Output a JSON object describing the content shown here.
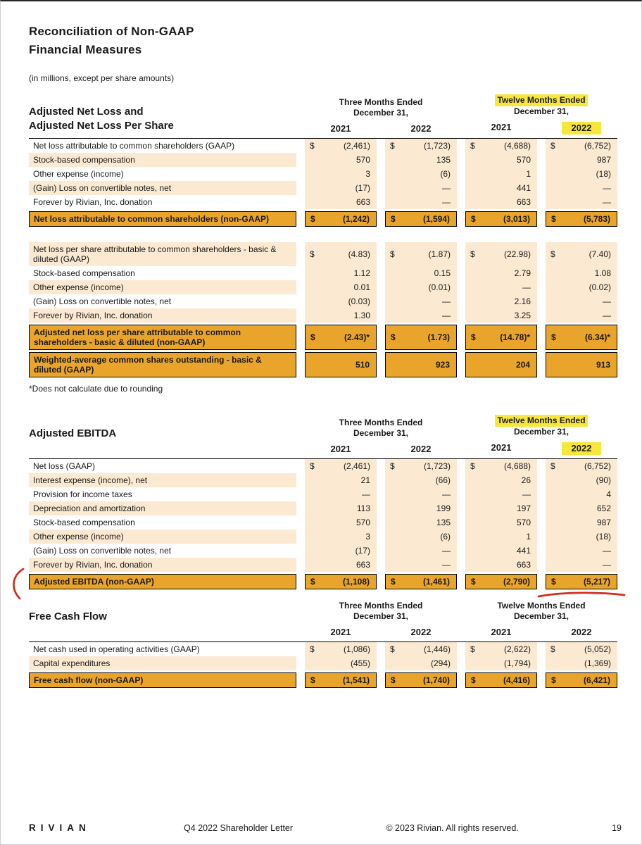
{
  "page": {
    "title_line1": "Reconciliation of Non-GAAP",
    "title_line2": "Financial Measures",
    "subtitle": "(in millions, except per share amounts)",
    "rounding_footnote": "*Does not calculate due to rounding"
  },
  "footer": {
    "logo_text": "RIVIAN",
    "center_text": "Q4 2022 Shareholder Letter",
    "copyright_text": "© 2023 Rivian. All rights reserved.",
    "page_number": "19"
  },
  "colors": {
    "amber": "#E9A42C",
    "row_tint": "#FBE9D2",
    "highlight_yellow": "#F7E73C",
    "annotation_red": "#D42B1E"
  },
  "tables": [
    {
      "id": "net-loss",
      "title_lines": [
        "Adjusted Net Loss and",
        "Adjusted Net Loss Per Share"
      ],
      "col_groups": [
        {
          "line1": "Three Months Ended",
          "line2": "December 31,",
          "line1_highlight": false,
          "years": [
            {
              "label": "2021",
              "highlight": false
            },
            {
              "label": "2022",
              "highlight": false
            }
          ]
        },
        {
          "line1": "Twelve Months Ended",
          "line2": "December 31,",
          "line1_highlight": true,
          "years": [
            {
              "label": "2021",
              "highlight": false
            },
            {
              "label": "2022",
              "highlight": true
            }
          ]
        }
      ],
      "rows": [
        {
          "type": "data",
          "tint": false,
          "dollar": true,
          "label": "Net loss attributable to common shareholders (GAAP)",
          "values": [
            "(2,461)",
            "(1,723)",
            "(4,688)",
            "(6,752)"
          ]
        },
        {
          "type": "data",
          "tint": true,
          "dollar": false,
          "label": "Stock-based compensation",
          "values": [
            "570",
            "135",
            "570",
            "987"
          ]
        },
        {
          "type": "data",
          "tint": false,
          "dollar": false,
          "label": "Other expense (income)",
          "values": [
            "3",
            "(6)",
            "1",
            "(18)"
          ]
        },
        {
          "type": "data",
          "tint": true,
          "dollar": false,
          "label": "(Gain) Loss on convertible notes, net",
          "values": [
            "(17)",
            "—",
            "441",
            "—"
          ]
        },
        {
          "type": "data",
          "tint": false,
          "dollar": false,
          "label": "Forever by Rivian, Inc. donation",
          "values": [
            "663",
            "—",
            "663",
            "—"
          ]
        },
        {
          "type": "total",
          "dollar": true,
          "label": "Net loss attributable to common shareholders (non-GAAP)",
          "values": [
            "(1,242)",
            "(1,594)",
            "(3,013)",
            "(5,783)"
          ]
        },
        {
          "type": "spacer"
        },
        {
          "type": "data",
          "tint": true,
          "dollar": true,
          "label": "Net loss per share attributable to common shareholders - basic & diluted (GAAP)",
          "values": [
            "(4.83)",
            "(1.87)",
            "(22.98)",
            "(7.40)"
          ]
        },
        {
          "type": "data",
          "tint": false,
          "dollar": false,
          "label": "Stock-based compensation",
          "values": [
            "1.12",
            "0.15",
            "2.79",
            "1.08"
          ]
        },
        {
          "type": "data",
          "tint": true,
          "dollar": false,
          "label": "Other expense (income)",
          "values": [
            "0.01",
            "(0.01)",
            "—",
            "(0.02)"
          ]
        },
        {
          "type": "data",
          "tint": false,
          "dollar": false,
          "label": "(Gain) Loss on convertible notes, net",
          "values": [
            "(0.03)",
            "—",
            "2.16",
            "—"
          ]
        },
        {
          "type": "data",
          "tint": true,
          "dollar": false,
          "label": "Forever by Rivian, Inc. donation",
          "values": [
            "1.30",
            "—",
            "3.25",
            "—"
          ]
        },
        {
          "type": "total",
          "dollar": true,
          "label": "Adjusted net loss per share attributable to common shareholders - basic & diluted (non-GAAP)",
          "values": [
            "(2.43)*",
            "(1.73)",
            "(14.78)*",
            "(6.34)*"
          ]
        },
        {
          "type": "total",
          "dollar": false,
          "label": "Weighted-average common shares outstanding - basic & diluted (GAAP)",
          "values": [
            "510",
            "923",
            "204",
            "913"
          ]
        }
      ]
    },
    {
      "id": "ebitda",
      "title_lines": [
        "Adjusted EBITDA"
      ],
      "col_groups": [
        {
          "line1": "Three Months Ended",
          "line2": "December 31,",
          "line1_highlight": false,
          "years": [
            {
              "label": "2021",
              "highlight": false
            },
            {
              "label": "2022",
              "highlight": false
            }
          ]
        },
        {
          "line1": "Twelve Months Ended",
          "line2": "December 31,",
          "line1_highlight": true,
          "years": [
            {
              "label": "2021",
              "highlight": false
            },
            {
              "label": "2022",
              "highlight": true
            }
          ]
        }
      ],
      "rows": [
        {
          "type": "data",
          "tint": false,
          "dollar": true,
          "label": "Net loss (GAAP)",
          "values": [
            "(2,461)",
            "(1,723)",
            "(4,688)",
            "(6,752)"
          ]
        },
        {
          "type": "data",
          "tint": true,
          "dollar": false,
          "label": "Interest expense (income), net",
          "values": [
            "21",
            "(66)",
            "26",
            "(90)"
          ]
        },
        {
          "type": "data",
          "tint": false,
          "dollar": false,
          "label": "Provision for income taxes",
          "values": [
            "—",
            "—",
            "—",
            "4"
          ]
        },
        {
          "type": "data",
          "tint": true,
          "dollar": false,
          "label": "Depreciation and amortization",
          "values": [
            "113",
            "199",
            "197",
            "652"
          ]
        },
        {
          "type": "data",
          "tint": false,
          "dollar": false,
          "label": "Stock-based compensation",
          "values": [
            "570",
            "135",
            "570",
            "987"
          ]
        },
        {
          "type": "data",
          "tint": true,
          "dollar": false,
          "label": "Other expense (income)",
          "values": [
            "3",
            "(6)",
            "1",
            "(18)"
          ]
        },
        {
          "type": "data",
          "tint": false,
          "dollar": false,
          "label": "(Gain) Loss on convertible notes, net",
          "values": [
            "(17)",
            "—",
            "441",
            "—"
          ]
        },
        {
          "type": "data",
          "tint": true,
          "dollar": false,
          "label": "Forever by Rivian, Inc. donation",
          "values": [
            "663",
            "—",
            "663",
            "—"
          ]
        },
        {
          "type": "total",
          "dollar": true,
          "annotate": true,
          "label": "Adjusted EBITDA (non-GAAP)",
          "values": [
            "(1,108)",
            "(1,461)",
            "(2,790)",
            "(5,217)"
          ]
        }
      ]
    },
    {
      "id": "fcf",
      "title_lines": [
        "Free Cash Flow"
      ],
      "col_groups": [
        {
          "line1": "Three Months Ended",
          "line2": "December 31,",
          "line1_highlight": false,
          "years": [
            {
              "label": "2021",
              "highlight": false
            },
            {
              "label": "2022",
              "highlight": false
            }
          ]
        },
        {
          "line1": "Twelve Months Ended",
          "line2": "December 31,",
          "line1_highlight": false,
          "years": [
            {
              "label": "2021",
              "highlight": false
            },
            {
              "label": "2022",
              "highlight": false
            }
          ]
        }
      ],
      "rows": [
        {
          "type": "data",
          "tint": false,
          "dollar": true,
          "label": "Net cash used in operating activities (GAAP)",
          "values": [
            "(1,086)",
            "(1,446)",
            "(2,622)",
            "(5,052)"
          ]
        },
        {
          "type": "data",
          "tint": true,
          "dollar": false,
          "label": "Capital expenditures",
          "values": [
            "(455)",
            "(294)",
            "(1,794)",
            "(1,369)"
          ]
        },
        {
          "type": "total",
          "dollar": true,
          "label": "Free cash flow (non-GAAP)",
          "values": [
            "(1,541)",
            "(1,740)",
            "(4,416)",
            "(6,421)"
          ]
        }
      ]
    }
  ]
}
